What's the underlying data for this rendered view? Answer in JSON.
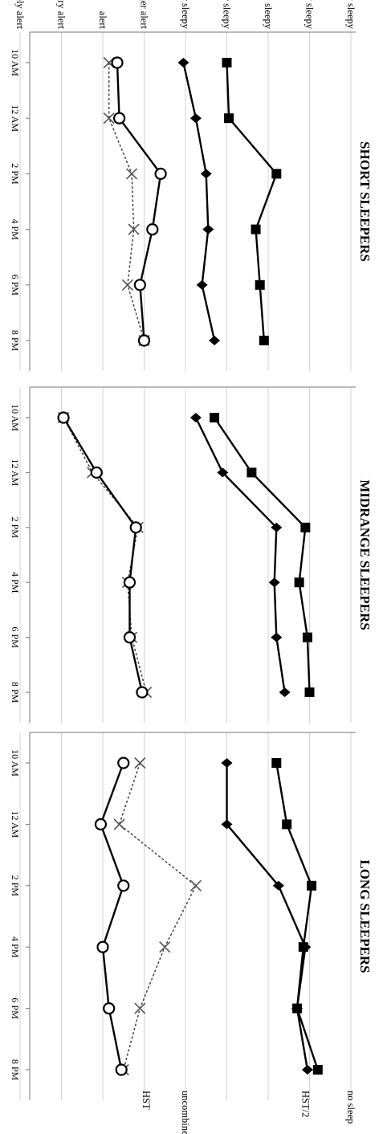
{
  "chart_data": {
    "type": "line",
    "orientation": "rotated 90° clockwise",
    "sleepiness_scale": [
      "extremely sleepy",
      "very sleepy",
      "sleepy",
      "rather sleepy",
      "neither alert nor sleepy",
      "rather alert",
      "alert",
      "very alert",
      "extremely  alert"
    ],
    "x_ticks": [
      "10 AM",
      "12 AM",
      "2 PM",
      "4 PM",
      "6 PM",
      "8 PM"
    ],
    "grid": true,
    "series_labels": {
      "no_sleep": "no sleep",
      "hst2": "HST/2",
      "uncombined": "uncombined",
      "hst": "HST"
    },
    "panels": [
      {
        "title": "SHORT SLEEPERS",
        "series": [
          {
            "key": "no_sleep",
            "marker": "square",
            "style": "solid",
            "x": [
              10,
              12,
              14,
              16,
              18,
              20
            ],
            "y": [
              3.0,
              2.95,
              1.8,
              2.3,
              2.2,
              2.1
            ]
          },
          {
            "key": "hst2",
            "marker": "diamond",
            "style": "solid",
            "x": [
              10,
              12,
              14,
              16,
              18,
              20
            ],
            "y": [
              4.05,
              3.75,
              3.5,
              3.45,
              3.6,
              3.3
            ]
          },
          {
            "key": "uncombined",
            "marker": "x",
            "style": "dotted",
            "x": [
              10,
              12,
              14,
              16,
              18,
              20
            ],
            "y": [
              5.85,
              5.85,
              5.3,
              5.25,
              5.4,
              5.0
            ]
          },
          {
            "key": "hst",
            "marker": "circle",
            "style": "solid",
            "x": [
              10,
              12,
              14,
              16,
              18,
              20
            ],
            "y": [
              5.65,
              5.6,
              4.6,
              4.8,
              5.1,
              5.0
            ]
          }
        ]
      },
      {
        "title": "MIDRANGE SLEEPERS",
        "series": [
          {
            "key": "no_sleep",
            "marker": "square",
            "style": "solid",
            "x": [
              10,
              12,
              14,
              16,
              18,
              20
            ],
            "y": [
              3.3,
              2.4,
              1.1,
              1.25,
              1.05,
              1.0
            ]
          },
          {
            "key": "hst2",
            "marker": "diamond",
            "style": "solid",
            "x": [
              10,
              12,
              14,
              16,
              18,
              20
            ],
            "y": [
              3.75,
              3.1,
              1.8,
              1.85,
              1.8,
              1.6
            ]
          },
          {
            "key": "uncombined",
            "marker": "x",
            "style": "dotted",
            "x": [
              10,
              12,
              14,
              16,
              18,
              20
            ],
            "y": [
              6.95,
              6.25,
              5.15,
              5.4,
              5.3,
              4.95
            ]
          },
          {
            "key": "hst",
            "marker": "circle",
            "style": "solid",
            "x": [
              10,
              12,
              14,
              16,
              18,
              20
            ],
            "y": [
              6.95,
              6.15,
              5.2,
              5.35,
              5.35,
              5.05
            ]
          }
        ]
      },
      {
        "title": "LONG SLEEPERS",
        "series": [
          {
            "key": "no_sleep",
            "marker": "square",
            "style": "solid",
            "x": [
              10,
              12,
              14,
              16,
              18,
              20
            ],
            "y": [
              1.8,
              1.55,
              0.95,
              1.15,
              1.3,
              0.8
            ]
          },
          {
            "key": "hst2",
            "marker": "diamond",
            "style": "solid",
            "x": [
              10,
              12,
              14,
              16,
              18,
              20
            ],
            "y": [
              3.0,
              3.0,
              1.75,
              1.1,
              1.3,
              1.05
            ]
          },
          {
            "key": "uncombined",
            "marker": "x",
            "style": "dotted",
            "x": [
              10,
              12,
              14,
              16,
              18,
              20
            ],
            "y": [
              5.1,
              5.6,
              3.75,
              4.5,
              5.1,
              5.5
            ]
          },
          {
            "key": "hst",
            "marker": "circle",
            "style": "solid",
            "x": [
              10,
              12,
              14,
              16,
              18,
              20
            ],
            "y": [
              5.5,
              6.05,
              5.5,
              6.0,
              5.85,
              5.55
            ]
          }
        ]
      }
    ]
  }
}
